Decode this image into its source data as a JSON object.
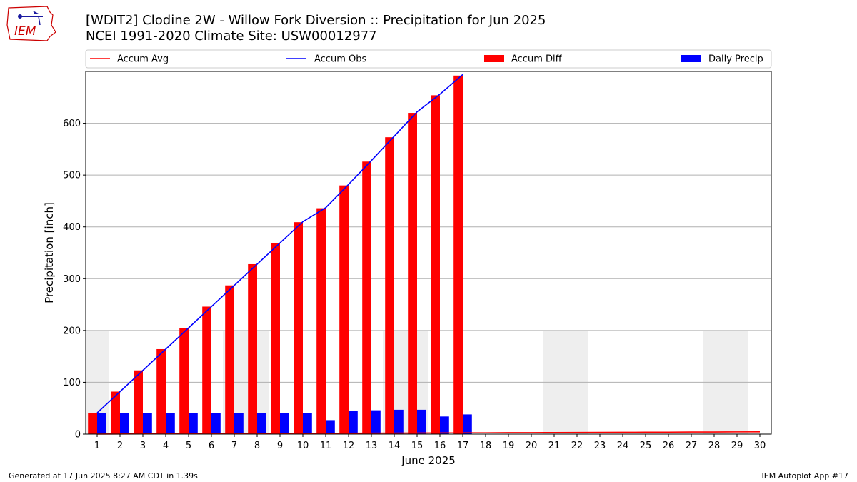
{
  "header": {
    "title_line1": "[WDIT2] Clodine 2W - Willow Fork Diversion :: Precipitation for Jun 2025",
    "title_line2": "NCEI 1991-2020 Climate Site: USW00012977",
    "logo_text": "IEM"
  },
  "footer": {
    "generated": "Generated at 17 Jun 2025 8:27 AM CDT in 1.39s",
    "app": "IEM Autoplot App #17"
  },
  "colors": {
    "accum_avg": "#ff0000",
    "accum_obs": "#0000ff",
    "accum_diff": "#ff0000",
    "daily_precip": "#0000ff",
    "weekend_shade": "#eeeeee",
    "grid": "#b0b0b0"
  },
  "chart_data": {
    "type": "bar",
    "xlabel": "June 2025",
    "ylabel": "Precipitation [inch]",
    "xlim": [
      0.5,
      30.5
    ],
    "ylim": [
      0,
      700
    ],
    "yticks": [
      0,
      100,
      200,
      300,
      400,
      500,
      600
    ],
    "grid": true,
    "legend_position": "top",
    "days": [
      1,
      2,
      3,
      4,
      5,
      6,
      7,
      8,
      9,
      10,
      11,
      12,
      13,
      14,
      15,
      16,
      17,
      18,
      19,
      20,
      21,
      22,
      23,
      24,
      25,
      26,
      27,
      28,
      29,
      30
    ],
    "weekend_shading": [
      [
        1,
        1
      ],
      [
        7,
        8
      ],
      [
        14,
        15
      ],
      [
        21,
        22
      ],
      [
        28,
        29
      ]
    ],
    "series": [
      {
        "name": "Accum Avg",
        "kind": "line",
        "x": [
          1,
          2,
          3,
          4,
          5,
          6,
          7,
          8,
          9,
          10,
          11,
          12,
          13,
          14,
          15,
          16,
          17,
          18,
          19,
          20,
          21,
          22,
          23,
          24,
          25,
          26,
          27,
          28,
          29,
          30
        ],
        "values": [
          0.1,
          0.3,
          0.4,
          0.5,
          0.7,
          0.8,
          1.0,
          1.1,
          1.3,
          1.4,
          1.6,
          1.7,
          1.9,
          2.0,
          2.2,
          2.3,
          2.5,
          2.6,
          2.8,
          2.9,
          3.1,
          3.2,
          3.4,
          3.5,
          3.7,
          3.8,
          4.0,
          4.1,
          4.3,
          4.4
        ]
      },
      {
        "name": "Accum Obs",
        "kind": "line",
        "x": [
          1,
          2,
          3,
          4,
          5,
          6,
          7,
          8,
          9,
          10,
          11,
          12,
          13,
          14,
          15,
          16,
          17
        ],
        "values": [
          41,
          82,
          123,
          164,
          205,
          246,
          287,
          328,
          369,
          410,
          437,
          482,
          528,
          575,
          622,
          656,
          694
        ]
      },
      {
        "name": "Accum Diff",
        "kind": "bar",
        "x": [
          1,
          2,
          3,
          4,
          5,
          6,
          7,
          8,
          9,
          10,
          11,
          12,
          13,
          14,
          15,
          16,
          17
        ],
        "values": [
          41,
          82,
          123,
          164,
          205,
          246,
          287,
          328,
          368,
          409,
          436,
          480,
          526,
          573,
          620,
          654,
          692
        ]
      },
      {
        "name": "Daily Precip",
        "kind": "bar",
        "x": [
          1,
          2,
          3,
          4,
          5,
          6,
          7,
          8,
          9,
          10,
          11,
          12,
          13,
          14,
          15,
          16,
          17
        ],
        "values": [
          41,
          41,
          41,
          41,
          41,
          41,
          41,
          41,
          41,
          41,
          27,
          45,
          46,
          47,
          47,
          34,
          38
        ]
      }
    ]
  }
}
